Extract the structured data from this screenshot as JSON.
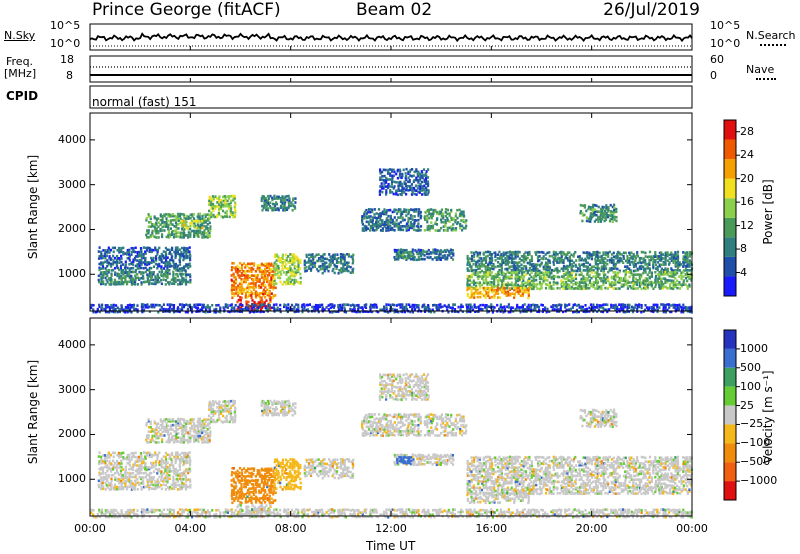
{
  "header": {
    "station": "Prince George (fitACF)",
    "beam": "Beam 02",
    "date": "26/Jul/2019"
  },
  "top_panels": {
    "nsky_label": "N.Sky",
    "nsearch_label": "N.Search",
    "nsky_ticks": [
      "10^5",
      "10^0"
    ],
    "nsearch_ticks": [
      "10^5",
      "10^0"
    ],
    "freq_label_line1": "Freq.",
    "freq_label_line2": "[MHz]",
    "freq_ticks": [
      "18",
      "8"
    ],
    "nave_label": "Nave",
    "nave_ticks": [
      "60",
      "0"
    ],
    "cpid_label": "CPID",
    "cpid_value": "normal (fast) 151"
  },
  "chart_data": [
    {
      "type": "heatmap",
      "name": "power",
      "ylabel": "Slant Range [km]",
      "ylim": [
        180,
        4600
      ],
      "yticks": [
        "1000",
        "2000",
        "3000",
        "4000"
      ],
      "ytick_values": [
        1000,
        2000,
        3000,
        4000
      ],
      "colorbar_label": "Power [dB]",
      "colorbar_ticks": [
        "4",
        "8",
        "12",
        "16",
        "20",
        "24",
        "28"
      ],
      "colorbar_tick_values": [
        4,
        8,
        12,
        16,
        20,
        24,
        28
      ],
      "crange": [
        0,
        30
      ],
      "colors": [
        "#1a1aff",
        "#1f4fa8",
        "#2f7f7f",
        "#4a9a5a",
        "#8ccf4a",
        "#f0e020",
        "#f5a000",
        "#ef5a00",
        "#e01010"
      ]
    },
    {
      "type": "heatmap",
      "name": "velocity",
      "ylabel": "Slant Range [km]",
      "ylim": [
        180,
        4600
      ],
      "yticks": [
        "1000",
        "2000",
        "3000",
        "4000"
      ],
      "ytick_values": [
        1000,
        2000,
        3000,
        4000
      ],
      "colorbar_label": "Velocity [m s⁻¹]",
      "colorbar_ticks": [
        "1000",
        "500",
        "100",
        "25",
        "−25",
        "−100",
        "−500",
        "−1000"
      ],
      "colors": [
        "#2533c0",
        "#3a6fd0",
        "#3ca061",
        "#66cc33",
        "#c8c8c8",
        "#f5b81a",
        "#f08c0a",
        "#f06010",
        "#e01010"
      ]
    }
  ],
  "xaxis": {
    "label": "Time UT",
    "ticks": [
      "00:00",
      "04:00",
      "08:00",
      "12:00",
      "16:00",
      "20:00",
      "00:00"
    ],
    "tick_hours": [
      0,
      4,
      8,
      12,
      16,
      20,
      24
    ]
  },
  "echo_regions": [
    {
      "t0": 0.3,
      "t1": 4.0,
      "r0": 1150,
      "r1": 1650,
      "p": 6,
      "v": 0
    },
    {
      "t0": 0.3,
      "t1": 4.0,
      "r0": 800,
      "r1": 1150,
      "p": 9,
      "v": 0
    },
    {
      "t0": 2.2,
      "t1": 4.8,
      "r0": 1850,
      "r1": 2400,
      "p": 11,
      "v": 0
    },
    {
      "t0": 3.6,
      "t1": 4.5,
      "r0": 2050,
      "r1": 2250,
      "p": 18,
      "v": 0
    },
    {
      "t0": 4.7,
      "t1": 5.8,
      "r0": 2300,
      "r1": 2800,
      "p": 15,
      "v": 0
    },
    {
      "t0": 6.8,
      "t1": 8.2,
      "r0": 2450,
      "r1": 2800,
      "p": 9,
      "v": 0
    },
    {
      "t0": 5.6,
      "t1": 7.4,
      "r0": 500,
      "r1": 1300,
      "p": 23,
      "v": -150
    },
    {
      "t0": 7.3,
      "t1": 8.4,
      "r0": 800,
      "r1": 1500,
      "p": 16,
      "v": -60
    },
    {
      "t0": 5.8,
      "t1": 7.2,
      "r0": 230,
      "r1": 480,
      "p": 27,
      "v": 0
    },
    {
      "t0": 8.5,
      "t1": 10.5,
      "r0": 1050,
      "r1": 1500,
      "p": 8,
      "v": 0
    },
    {
      "t0": 10.8,
      "t1": 13.2,
      "r0": 2000,
      "r1": 2500,
      "p": 7,
      "v": 0
    },
    {
      "t0": 11.5,
      "t1": 13.5,
      "r0": 2800,
      "r1": 3400,
      "p": 6,
      "v": 0
    },
    {
      "t0": 13.3,
      "t1": 15.0,
      "r0": 2000,
      "r1": 2500,
      "p": 11,
      "v": 0
    },
    {
      "t0": 12.0,
      "t1": 14.5,
      "r0": 1350,
      "r1": 1600,
      "p": 7,
      "v": 0
    },
    {
      "t0": 12.2,
      "t1": 12.9,
      "r0": 1380,
      "r1": 1550,
      "p": 10,
      "v": 150
    },
    {
      "t0": 15.0,
      "t1": 24.0,
      "r0": 1100,
      "r1": 1550,
      "p": 9,
      "v": 0
    },
    {
      "t0": 15.0,
      "t1": 24.0,
      "r0": 700,
      "r1": 1100,
      "p": 13,
      "v": 0
    },
    {
      "t0": 15.0,
      "t1": 17.5,
      "r0": 500,
      "r1": 750,
      "p": 22,
      "v": 0
    },
    {
      "t0": 19.5,
      "t1": 21.0,
      "r0": 2200,
      "r1": 2600,
      "p": 10,
      "v": 0
    },
    {
      "t0": 0.0,
      "t1": 24.0,
      "r0": 180,
      "r1": 380,
      "p": 4,
      "v": 0
    }
  ]
}
